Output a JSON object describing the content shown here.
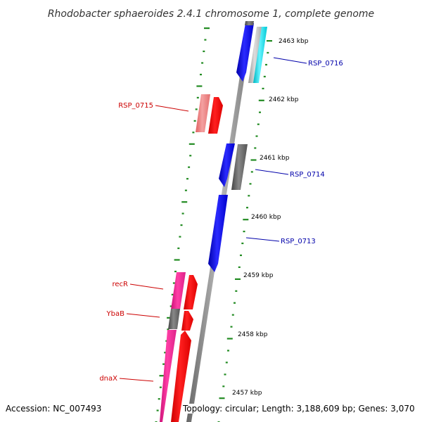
{
  "title": "Rhodobacter sphaeroides 2.4.1 chromosome 1, complete genome",
  "footer": {
    "accession": "Accession: NC_007493",
    "topology": "Topology: circular; Length: 3,188,609 bp; Genes: 3,070"
  },
  "ticks": [
    {
      "label": "2463 kbp"
    },
    {
      "label": "2462 kbp"
    },
    {
      "label": "2461 kbp"
    },
    {
      "label": "2460 kbp"
    },
    {
      "label": "2459 kbp"
    },
    {
      "label": "2458 kbp"
    },
    {
      "label": "2457 kbp"
    }
  ],
  "gene_labels": [
    {
      "name": "RSP_0716",
      "color": "#0000aa"
    },
    {
      "name": "RSP_0715",
      "color": "#cc0000"
    },
    {
      "name": "RSP_0714",
      "color": "#0000aa"
    },
    {
      "name": "RSP_0713",
      "color": "#0000aa"
    },
    {
      "name": "recR",
      "color": "#cc0000"
    },
    {
      "name": "YbaB",
      "color": "#cc0000"
    },
    {
      "name": "dnaX",
      "color": "#cc0000"
    }
  ],
  "colors": {
    "forward_strand": "#ff0000",
    "reverse_strand": "#0000ff",
    "rna": "#ff3399",
    "pseudo_gray": "#666666",
    "light_red": "#f08080",
    "cyan": "#00e5ee",
    "backbone": "#888888",
    "tick_green": "#228b22"
  }
}
